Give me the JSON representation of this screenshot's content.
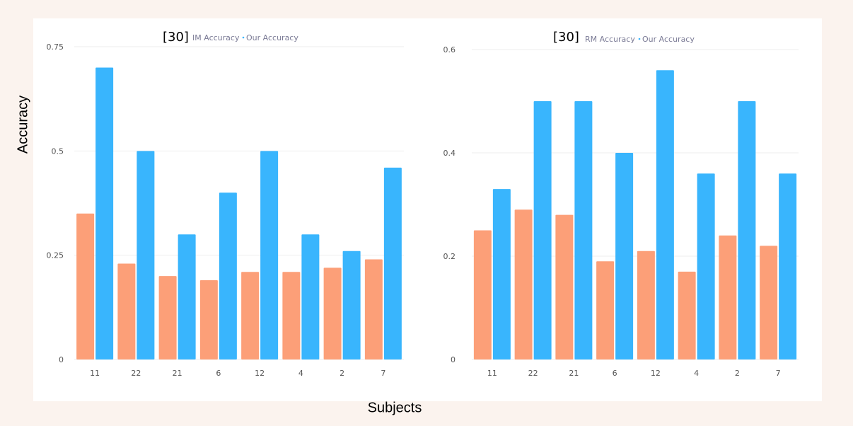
{
  "figure": {
    "ylabel": "Accuracy",
    "xlabel": "Subjects"
  },
  "colors": {
    "baseline": "#fc9f78",
    "ours": "#39b5fd",
    "grid": "#eeeeee",
    "tick_text": "#555555",
    "page_bg": "#fbf3ee",
    "panel_bg": "#ffffff"
  },
  "chart_data": [
    {
      "type": "bar",
      "ref": "[30]",
      "categories": [
        "11",
        "22",
        "21",
        "6",
        "12",
        "4",
        "2",
        "7"
      ],
      "series": [
        {
          "name": "IM  Accuracy",
          "color": "#fc9f78",
          "values": [
            0.35,
            0.23,
            0.2,
            0.19,
            0.21,
            0.21,
            0.22,
            0.24
          ]
        },
        {
          "name": "Our Accuracy",
          "color": "#39b5fd",
          "values": [
            0.7,
            0.5,
            0.3,
            0.4,
            0.5,
            0.3,
            0.26,
            0.46
          ]
        }
      ],
      "yticks": [
        "0",
        "0.25",
        "0.5",
        "0.75"
      ],
      "ylim": [
        0,
        0.75
      ],
      "legend": "top-center",
      "grid": true
    },
    {
      "type": "bar",
      "ref": "[30]",
      "categories": [
        "11",
        "22",
        "21",
        "6",
        "12",
        "4",
        "2",
        "7"
      ],
      "series": [
        {
          "name": "RM  Accuracy",
          "color": "#fc9f78",
          "values": [
            0.25,
            0.29,
            0.28,
            0.19,
            0.21,
            0.17,
            0.24,
            0.22
          ]
        },
        {
          "name": "Our Accuracy",
          "color": "#39b5fd",
          "values": [
            0.33,
            0.5,
            0.5,
            0.4,
            0.56,
            0.36,
            0.5,
            0.36
          ]
        }
      ],
      "yticks": [
        "0",
        "0.2",
        "0.4",
        "0.6"
      ],
      "ylim": [
        0,
        0.6
      ],
      "legend": "top-center",
      "grid": true
    }
  ]
}
